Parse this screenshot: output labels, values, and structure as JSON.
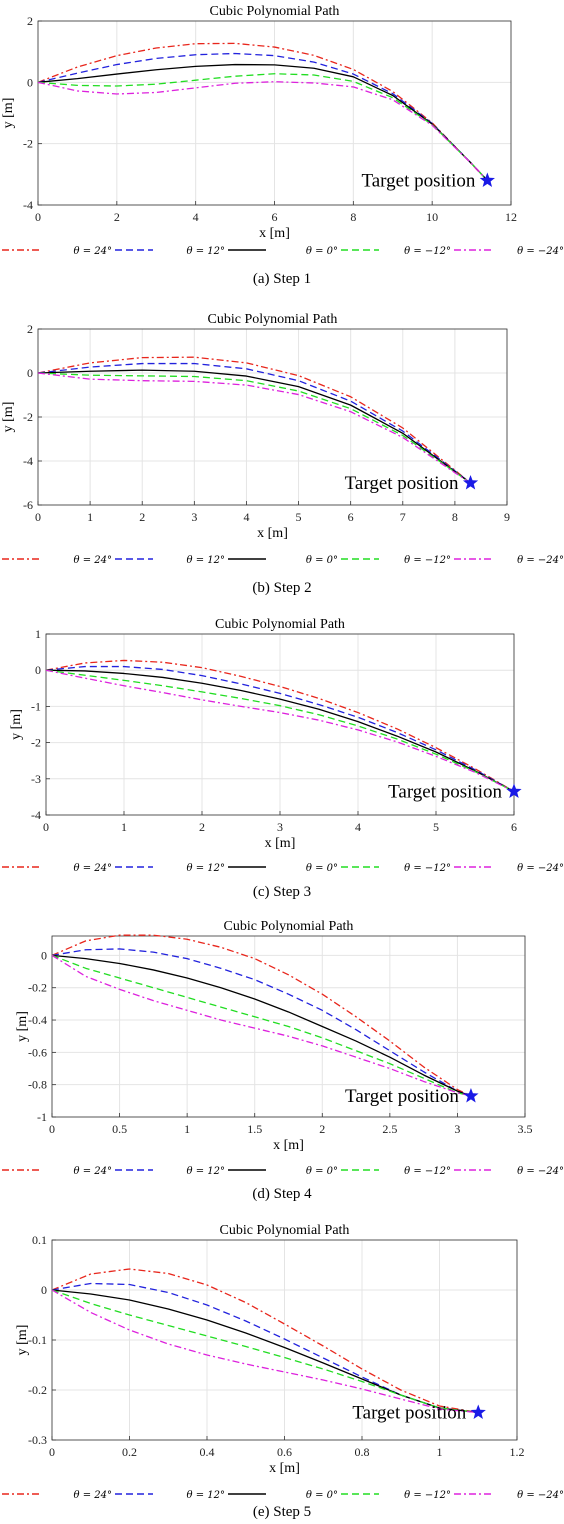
{
  "chart_data": [
    {
      "type": "line",
      "title": "Cubic Polynomial Path",
      "xlabel": "x [m]",
      "ylabel": "y [m]",
      "xlim": [
        0,
        12
      ],
      "ylim": [
        -4,
        2
      ],
      "xticks": [
        0,
        2,
        4,
        6,
        8,
        10,
        12
      ],
      "yticks": [
        2,
        0,
        -2,
        -4
      ],
      "xtick_labels": [
        "0",
        "2",
        "4",
        "6",
        "8",
        "10",
        "12"
      ],
      "ytick_labels": [
        "2",
        "0",
        "-2",
        "-4"
      ],
      "grid": true,
      "target": {
        "x": 11.4,
        "y": -3.2,
        "label": "Target position"
      },
      "series": [
        {
          "name": "θ = 24°",
          "color": "#e8261c",
          "style": "dashdot",
          "x": [
            0,
            1,
            2,
            3,
            4,
            5,
            6,
            7,
            8,
            9,
            10,
            11,
            11.4
          ],
          "y": [
            0,
            0.5,
            0.87,
            1.12,
            1.26,
            1.27,
            1.15,
            0.88,
            0.42,
            -0.3,
            -1.32,
            -2.66,
            -3.2
          ]
        },
        {
          "name": "θ = 12°",
          "color": "#2222dd",
          "style": "dashed",
          "x": [
            0,
            1,
            2,
            3,
            4,
            5,
            6,
            7,
            8,
            9,
            10,
            11,
            11.4
          ],
          "y": [
            0,
            0.3,
            0.58,
            0.78,
            0.9,
            0.94,
            0.87,
            0.66,
            0.27,
            -0.37,
            -1.34,
            -2.65,
            -3.2
          ]
        },
        {
          "name": "θ = 0°",
          "color": "#000000",
          "style": "solid",
          "x": [
            0,
            1,
            2,
            3,
            4,
            5,
            6,
            7,
            8,
            9,
            10,
            11,
            11.4
          ],
          "y": [
            0,
            0.12,
            0.27,
            0.41,
            0.52,
            0.58,
            0.57,
            0.46,
            0.18,
            -0.43,
            -1.36,
            -2.65,
            -3.2
          ]
        },
        {
          "name": "θ = −12°",
          "color": "#22dd22",
          "style": "dashed",
          "x": [
            0,
            1,
            2,
            3,
            4,
            5,
            6,
            7,
            8,
            9,
            10,
            11,
            11.4
          ],
          "y": [
            0,
            -0.1,
            -0.12,
            -0.06,
            0.07,
            0.2,
            0.28,
            0.24,
            0.03,
            -0.5,
            -1.38,
            -2.65,
            -3.2
          ]
        },
        {
          "name": "θ = −24°",
          "color": "#dd22dd",
          "style": "dashdot",
          "x": [
            0,
            1,
            2,
            3,
            4,
            5,
            6,
            7,
            8,
            9,
            10,
            11,
            11.4
          ],
          "y": [
            0,
            -0.28,
            -0.38,
            -0.33,
            -0.18,
            -0.03,
            0.02,
            -0.02,
            -0.15,
            -0.57,
            -1.4,
            -2.65,
            -3.2
          ]
        }
      ],
      "caption": "(a) Step 1"
    },
    {
      "type": "line",
      "title": "Cubic Polynomial Path",
      "xlabel": "x [m]",
      "ylabel": "y [m]",
      "xlim": [
        0,
        9
      ],
      "ylim": [
        -6,
        2
      ],
      "xticks": [
        0,
        1,
        2,
        3,
        4,
        5,
        6,
        7,
        8,
        9
      ],
      "yticks": [
        2,
        0,
        -2,
        -4,
        -6
      ],
      "xtick_labels": [
        "0",
        "1",
        "2",
        "3",
        "4",
        "5",
        "6",
        "7",
        "8",
        "9"
      ],
      "ytick_labels": [
        "2",
        "0",
        "-2",
        "-4",
        "-6"
      ],
      "grid": true,
      "target": {
        "x": 8.3,
        "y": -5,
        "label": "Target position"
      },
      "series": [
        {
          "name": "θ = 24°",
          "color": "#e8261c",
          "style": "dashdot",
          "x": [
            0,
            1,
            2,
            3,
            4,
            5,
            6,
            7,
            8,
            8.3
          ],
          "y": [
            0,
            0.46,
            0.7,
            0.72,
            0.46,
            -0.12,
            -1.08,
            -2.5,
            -4.42,
            -5
          ]
        },
        {
          "name": "θ = 12°",
          "color": "#2222dd",
          "style": "dashed",
          "x": [
            0,
            1,
            2,
            3,
            4,
            5,
            6,
            7,
            8,
            8.3
          ],
          "y": [
            0,
            0.27,
            0.43,
            0.43,
            0.19,
            -0.35,
            -1.28,
            -2.64,
            -4.45,
            -5
          ]
        },
        {
          "name": "θ = 0°",
          "color": "#000000",
          "style": "solid",
          "x": [
            0,
            1,
            2,
            3,
            4,
            5,
            6,
            7,
            8,
            8.3
          ],
          "y": [
            0,
            0.08,
            0.13,
            0.08,
            -0.14,
            -0.62,
            -1.46,
            -2.74,
            -4.48,
            -5
          ]
        },
        {
          "name": "θ = −12°",
          "color": "#22dd22",
          "style": "dashed",
          "x": [
            0,
            1,
            2,
            3,
            4,
            5,
            6,
            7,
            8,
            8.3
          ],
          "y": [
            0,
            -0.1,
            -0.13,
            -0.16,
            -0.35,
            -0.82,
            -1.62,
            -2.84,
            -4.5,
            -5
          ]
        },
        {
          "name": "θ = −24°",
          "color": "#dd22dd",
          "style": "dashdot",
          "x": [
            0,
            1,
            2,
            3,
            4,
            5,
            6,
            7,
            8,
            8.3
          ],
          "y": [
            0,
            -0.28,
            -0.35,
            -0.38,
            -0.55,
            -0.98,
            -1.76,
            -2.93,
            -4.53,
            -5
          ]
        }
      ],
      "caption": "(b) Step 2"
    },
    {
      "type": "line",
      "title": "Cubic Polynomial Path",
      "xlabel": "x [m]",
      "ylabel": "y [m]",
      "xlim": [
        0,
        6
      ],
      "ylim": [
        -4,
        1
      ],
      "xticks": [
        0,
        1,
        2,
        3,
        4,
        5,
        6
      ],
      "yticks": [
        1,
        0,
        -1,
        -2,
        -3,
        -4
      ],
      "xtick_labels": [
        "0",
        "1",
        "2",
        "3",
        "4",
        "5",
        "6"
      ],
      "ytick_labels": [
        "1",
        "0",
        "-1",
        "-2",
        "-3",
        "-4"
      ],
      "grid": true,
      "target": {
        "x": 6,
        "y": -3.35,
        "label": "Target position"
      },
      "series": [
        {
          "name": "θ = 24°",
          "color": "#e8261c",
          "style": "dashdot",
          "x": [
            0,
            0.5,
            1,
            1.5,
            2,
            2.5,
            3,
            3.5,
            4,
            4.5,
            5,
            5.5,
            6
          ],
          "y": [
            0,
            0.2,
            0.27,
            0.22,
            0.07,
            -0.17,
            -0.45,
            -0.78,
            -1.17,
            -1.62,
            -2.14,
            -2.72,
            -3.35
          ]
        },
        {
          "name": "θ = 12°",
          "color": "#2222dd",
          "style": "dashed",
          "x": [
            0,
            0.5,
            1,
            1.5,
            2,
            2.5,
            3,
            3.5,
            4,
            4.5,
            5,
            5.5,
            6
          ],
          "y": [
            0,
            0.1,
            0.1,
            0.02,
            -0.15,
            -0.38,
            -0.64,
            -0.95,
            -1.3,
            -1.72,
            -2.2,
            -2.75,
            -3.35
          ]
        },
        {
          "name": "θ = 0°",
          "color": "#000000",
          "style": "solid",
          "x": [
            0,
            0.5,
            1,
            1.5,
            2,
            2.5,
            3,
            3.5,
            4,
            4.5,
            5,
            5.5,
            6
          ],
          "y": [
            0,
            -0.02,
            -0.09,
            -0.2,
            -0.36,
            -0.56,
            -0.8,
            -1.08,
            -1.42,
            -1.82,
            -2.26,
            -2.78,
            -3.35
          ]
        },
        {
          "name": "θ = −12°",
          "color": "#22dd22",
          "style": "dashed",
          "x": [
            0,
            0.5,
            1,
            1.5,
            2,
            2.5,
            3,
            3.5,
            4,
            4.5,
            5,
            5.5,
            6
          ],
          "y": [
            0,
            -0.14,
            -0.28,
            -0.43,
            -0.6,
            -0.78,
            -0.98,
            -1.23,
            -1.54,
            -1.9,
            -2.32,
            -2.8,
            -3.35
          ]
        },
        {
          "name": "θ = −24°",
          "color": "#dd22dd",
          "style": "dashdot",
          "x": [
            0,
            0.5,
            1,
            1.5,
            2,
            2.5,
            3,
            3.5,
            4,
            4.5,
            5,
            5.5,
            6
          ],
          "y": [
            0,
            -0.22,
            -0.43,
            -0.62,
            -0.82,
            -1,
            -1.17,
            -1.38,
            -1.65,
            -1.98,
            -2.38,
            -2.82,
            -3.35
          ]
        }
      ],
      "caption": "(c) Step 3"
    },
    {
      "type": "line",
      "title": "Cubic Polynomial Path",
      "xlabel": "x [m]",
      "ylabel": "y [m]",
      "xlim": [
        0,
        3.5
      ],
      "ylim": [
        -1,
        0.12
      ],
      "xticks": [
        0,
        0.5,
        1,
        1.5,
        2,
        2.5,
        3,
        3.5
      ],
      "yticks": [
        0,
        -0.2,
        -0.4,
        -0.6,
        -0.8,
        -1
      ],
      "xtick_labels": [
        "0",
        "0.5",
        "1",
        "1.5",
        "2",
        "2.5",
        "3",
        "3.5"
      ],
      "ytick_labels": [
        "0",
        "-0.2",
        "-0.4",
        "-0.6",
        "-0.8",
        "-1"
      ],
      "grid": true,
      "target": {
        "x": 3.1,
        "y": -0.87,
        "label": "Target position"
      },
      "series": [
        {
          "name": "θ = 24°",
          "color": "#e8261c",
          "style": "dashdot",
          "x": [
            0,
            0.25,
            0.5,
            0.75,
            1,
            1.25,
            1.5,
            1.75,
            2,
            2.25,
            2.5,
            2.75,
            3,
            3.1
          ],
          "y": [
            0,
            0.09,
            0.125,
            0.125,
            0.1,
            0.05,
            -0.02,
            -0.12,
            -0.24,
            -0.38,
            -0.53,
            -0.69,
            -0.83,
            -0.87
          ]
        },
        {
          "name": "θ = 12°",
          "color": "#2222dd",
          "style": "dashed",
          "x": [
            0,
            0.25,
            0.5,
            0.75,
            1,
            1.25,
            1.5,
            1.75,
            2,
            2.25,
            2.5,
            2.75,
            3,
            3.1
          ],
          "y": [
            0,
            0.035,
            0.04,
            0.02,
            -0.02,
            -0.08,
            -0.15,
            -0.24,
            -0.34,
            -0.46,
            -0.59,
            -0.72,
            -0.84,
            -0.87
          ]
        },
        {
          "name": "θ = 0°",
          "color": "#000000",
          "style": "solid",
          "x": [
            0,
            0.25,
            0.5,
            0.75,
            1,
            1.25,
            1.5,
            1.75,
            2,
            2.25,
            2.5,
            2.75,
            3,
            3.1
          ],
          "y": [
            0,
            -0.02,
            -0.05,
            -0.09,
            -0.14,
            -0.2,
            -0.27,
            -0.35,
            -0.44,
            -0.53,
            -0.63,
            -0.74,
            -0.84,
            -0.87
          ]
        },
        {
          "name": "θ = −12°",
          "color": "#22dd22",
          "style": "dashed",
          "x": [
            0,
            0.25,
            0.5,
            0.75,
            1,
            1.25,
            1.5,
            1.75,
            2,
            2.25,
            2.5,
            2.75,
            3,
            3.1
          ],
          "y": [
            0,
            -0.08,
            -0.14,
            -0.2,
            -0.26,
            -0.32,
            -0.38,
            -0.44,
            -0.51,
            -0.59,
            -0.67,
            -0.76,
            -0.85,
            -0.87
          ]
        },
        {
          "name": "θ = −24°",
          "color": "#dd22dd",
          "style": "dashdot",
          "x": [
            0,
            0.25,
            0.5,
            0.75,
            1,
            1.25,
            1.5,
            1.75,
            2,
            2.25,
            2.5,
            2.75,
            3,
            3.1
          ],
          "y": [
            0,
            -0.13,
            -0.21,
            -0.28,
            -0.34,
            -0.4,
            -0.45,
            -0.5,
            -0.56,
            -0.63,
            -0.7,
            -0.78,
            -0.85,
            -0.87
          ]
        }
      ],
      "caption": "(d) Step 4"
    },
    {
      "type": "line",
      "title": "Cubic Polynomial Path",
      "xlabel": "x [m]",
      "ylabel": "y [m]",
      "xlim": [
        0,
        1.2
      ],
      "ylim": [
        -0.3,
        0.1
      ],
      "xticks": [
        0,
        0.2,
        0.4,
        0.6,
        0.8,
        1,
        1.2
      ],
      "yticks": [
        0.1,
        0,
        -0.1,
        -0.2,
        -0.3
      ],
      "xtick_labels": [
        "0",
        "0.2",
        "0.4",
        "0.6",
        "0.8",
        "1",
        "1.2"
      ],
      "ytick_labels": [
        "0.1",
        "0",
        "-0.1",
        "-0.2",
        "-0.3"
      ],
      "grid": true,
      "target": {
        "x": 1.1,
        "y": -0.245,
        "label": "Target position"
      },
      "series": [
        {
          "name": "θ = 24°",
          "color": "#e8261c",
          "style": "dashdot",
          "x": [
            0,
            0.1,
            0.2,
            0.3,
            0.4,
            0.5,
            0.6,
            0.7,
            0.8,
            0.9,
            1,
            1.1
          ],
          "y": [
            0,
            0.032,
            0.042,
            0.033,
            0.01,
            -0.025,
            -0.068,
            -0.112,
            -0.158,
            -0.2,
            -0.232,
            -0.245
          ]
        },
        {
          "name": "θ = 12°",
          "color": "#2222dd",
          "style": "dashed",
          "x": [
            0,
            0.1,
            0.2,
            0.3,
            0.4,
            0.5,
            0.6,
            0.7,
            0.8,
            0.9,
            1,
            1.1
          ],
          "y": [
            0,
            0.013,
            0.011,
            -0.005,
            -0.03,
            -0.062,
            -0.098,
            -0.136,
            -0.174,
            -0.21,
            -0.236,
            -0.245
          ]
        },
        {
          "name": "θ = 0°",
          "color": "#000000",
          "style": "solid",
          "x": [
            0,
            0.1,
            0.2,
            0.3,
            0.4,
            0.5,
            0.6,
            0.7,
            0.8,
            0.9,
            1,
            1.1
          ],
          "y": [
            0,
            -0.008,
            -0.02,
            -0.038,
            -0.06,
            -0.086,
            -0.115,
            -0.146,
            -0.178,
            -0.21,
            -0.236,
            -0.245
          ]
        },
        {
          "name": "θ = −12°",
          "color": "#22dd22",
          "style": "dashed",
          "x": [
            0,
            0.1,
            0.2,
            0.3,
            0.4,
            0.5,
            0.6,
            0.7,
            0.8,
            0.9,
            1,
            1.1
          ],
          "y": [
            0,
            -0.027,
            -0.05,
            -0.071,
            -0.092,
            -0.113,
            -0.135,
            -0.158,
            -0.183,
            -0.21,
            -0.236,
            -0.245
          ]
        },
        {
          "name": "θ = −24°",
          "color": "#dd22dd",
          "style": "dashdot",
          "x": [
            0,
            0.1,
            0.2,
            0.3,
            0.4,
            0.5,
            0.6,
            0.7,
            0.8,
            0.9,
            1,
            1.1
          ],
          "y": [
            0,
            -0.045,
            -0.08,
            -0.108,
            -0.13,
            -0.148,
            -0.164,
            -0.18,
            -0.198,
            -0.218,
            -0.238,
            -0.245
          ]
        }
      ],
      "caption": "(e) Step 5"
    }
  ]
}
